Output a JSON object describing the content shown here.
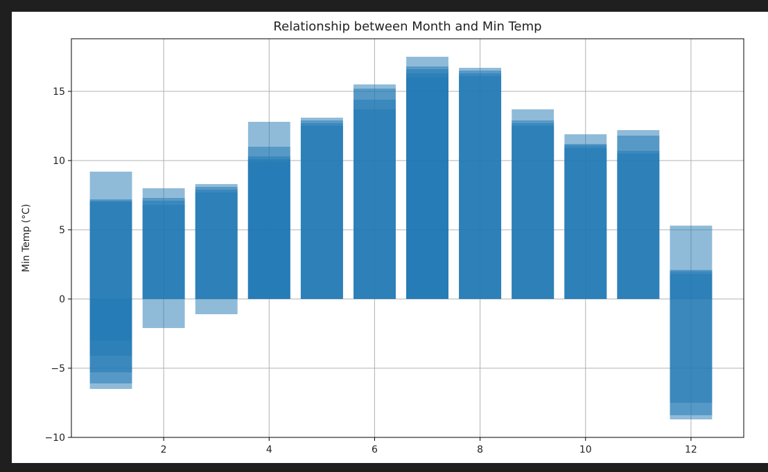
{
  "chart_data": {
    "type": "bar",
    "title": "Relationship between Month and Min Temp",
    "xlabel": "",
    "ylabel": "Min Temp (°C)",
    "xlim": [
      0.25,
      13.0
    ],
    "ylim": [
      -10,
      18.8
    ],
    "x_ticks": [
      2,
      4,
      6,
      8,
      10,
      12
    ],
    "y_ticks": [
      -10,
      -5,
      0,
      5,
      10,
      15
    ],
    "y_tick_labels": [
      "−10",
      "−5",
      "0",
      "5",
      "10",
      "15"
    ],
    "grid": true,
    "bar_color": "#1f77b4",
    "bar_alpha": 0.5,
    "bar_width": 0.8,
    "points": [
      {
        "x": 1,
        "values": [
          9.2,
          7.2,
          7.1,
          7.0,
          -3.0,
          -4.1,
          -5.3,
          -6.1,
          -6.5
        ]
      },
      {
        "x": 2,
        "values": [
          8.0,
          7.3,
          7.1,
          6.8,
          -2.1
        ]
      },
      {
        "x": 3,
        "values": [
          8.3,
          8.1,
          7.9,
          7.7,
          -1.1
        ]
      },
      {
        "x": 4,
        "values": [
          12.8,
          11.0,
          10.3,
          10.1,
          9.9
        ]
      },
      {
        "x": 5,
        "values": [
          13.1,
          12.9,
          12.7,
          12.5
        ]
      },
      {
        "x": 6,
        "values": [
          15.5,
          15.2,
          14.4,
          13.7
        ]
      },
      {
        "x": 7,
        "values": [
          17.5,
          16.8,
          16.6,
          16.3,
          16.0
        ]
      },
      {
        "x": 8,
        "values": [
          16.7,
          16.5,
          16.3,
          16.1
        ]
      },
      {
        "x": 9,
        "values": [
          13.7,
          12.9,
          12.7,
          12.5
        ]
      },
      {
        "x": 10,
        "values": [
          11.9,
          11.2,
          11.1,
          10.9
        ]
      },
      {
        "x": 11,
        "values": [
          12.2,
          11.8,
          10.7,
          10.5
        ]
      },
      {
        "x": 12,
        "values": [
          5.3,
          2.1,
          2.0,
          1.8,
          -7.5,
          -8.4,
          -8.7
        ]
      }
    ]
  }
}
